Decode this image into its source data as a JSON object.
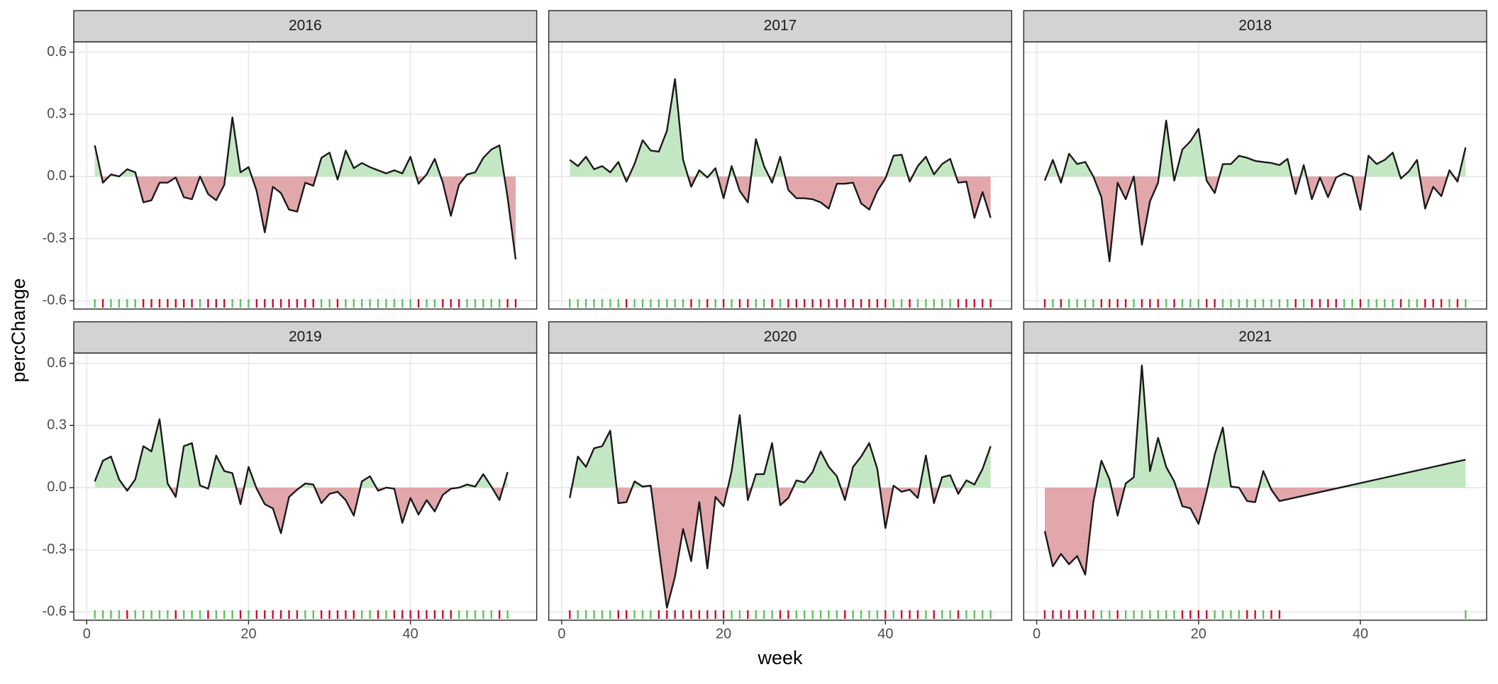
{
  "chart_data": {
    "type": "area",
    "x_label": "week",
    "y_label": "percChange",
    "xlim": [
      -1.6,
      55.6
    ],
    "xticks": [
      0,
      20,
      40
    ],
    "ylim": [
      -0.64,
      0.65
    ],
    "yticks": [
      -0.6,
      -0.3,
      {
        "value": 0,
        "label": "0.0"
      },
      0.3,
      0.6
    ],
    "grid": true,
    "fill_colors": {
      "positive": "#c4e7c3",
      "negative": "#e1a7ab"
    },
    "rug_colors": {
      "positive": "#5fc35f",
      "negative": "#c8102e"
    },
    "line_color": "#1a1a1a",
    "facets": [
      {
        "title": "2016",
        "x": [
          1,
          2,
          3,
          4,
          5,
          6,
          7,
          8,
          9,
          10,
          11,
          12,
          13,
          14,
          15,
          16,
          17,
          18,
          19,
          20,
          21,
          22,
          23,
          24,
          25,
          26,
          27,
          28,
          29,
          30,
          31,
          32,
          33,
          34,
          35,
          36,
          37,
          38,
          39,
          40,
          41,
          42,
          43,
          44,
          45,
          46,
          47,
          48,
          49,
          50,
          51,
          52,
          53
        ],
        "values": [
          0.15,
          -0.03,
          0.01,
          0.0,
          0.035,
          0.02,
          -0.125,
          -0.115,
          -0.03,
          -0.03,
          -0.005,
          -0.1,
          -0.11,
          0.0,
          -0.085,
          -0.115,
          -0.04,
          0.285,
          0.02,
          0.045,
          -0.07,
          -0.27,
          -0.05,
          -0.08,
          -0.16,
          -0.17,
          -0.03,
          -0.045,
          0.09,
          0.115,
          -0.015,
          0.125,
          0.04,
          0.065,
          0.045,
          0.03,
          0.015,
          0.03,
          0.015,
          0.095,
          -0.035,
          0.01,
          0.085,
          -0.03,
          -0.19,
          -0.04,
          0.01,
          0.02,
          0.09,
          0.13,
          0.15,
          -0.1,
          -0.4
        ]
      },
      {
        "title": "2017",
        "x": [
          1,
          2,
          3,
          4,
          5,
          6,
          7,
          8,
          9,
          10,
          11,
          12,
          13,
          14,
          15,
          16,
          17,
          18,
          19,
          20,
          21,
          22,
          23,
          24,
          25,
          26,
          27,
          28,
          29,
          30,
          31,
          32,
          33,
          34,
          35,
          36,
          37,
          38,
          39,
          40,
          41,
          42,
          43,
          44,
          45,
          46,
          47,
          48,
          49,
          50,
          51,
          52,
          53
        ],
        "values": [
          0.08,
          0.05,
          0.095,
          0.035,
          0.05,
          0.02,
          0.07,
          -0.025,
          0.06,
          0.175,
          0.125,
          0.12,
          0.22,
          0.47,
          0.08,
          -0.05,
          0.03,
          -0.005,
          0.04,
          -0.105,
          0.05,
          -0.07,
          -0.125,
          0.18,
          0.05,
          -0.03,
          0.095,
          -0.065,
          -0.105,
          -0.105,
          -0.11,
          -0.125,
          -0.155,
          -0.035,
          -0.035,
          -0.03,
          -0.13,
          -0.16,
          -0.07,
          -0.01,
          0.1,
          0.105,
          -0.025,
          0.05,
          0.095,
          0.01,
          0.06,
          0.085,
          -0.03,
          -0.025,
          -0.2,
          -0.075,
          -0.2
        ]
      },
      {
        "title": "2018",
        "x": [
          1,
          2,
          3,
          4,
          5,
          6,
          7,
          8,
          9,
          10,
          11,
          12,
          13,
          14,
          15,
          16,
          17,
          18,
          19,
          20,
          21,
          22,
          23,
          24,
          25,
          26,
          27,
          28,
          29,
          30,
          31,
          32,
          33,
          34,
          35,
          36,
          37,
          38,
          39,
          40,
          41,
          42,
          43,
          44,
          45,
          46,
          47,
          48,
          49,
          50,
          51,
          52,
          53
        ],
        "values": [
          -0.02,
          0.08,
          -0.03,
          0.11,
          0.06,
          0.07,
          0.0,
          -0.1,
          -0.41,
          -0.03,
          -0.11,
          0.0,
          -0.33,
          -0.12,
          -0.03,
          0.27,
          -0.02,
          0.13,
          0.17,
          0.23,
          -0.02,
          -0.08,
          0.06,
          0.06,
          0.1,
          0.09,
          0.075,
          0.07,
          0.065,
          0.055,
          0.085,
          -0.085,
          0.055,
          -0.11,
          -0.005,
          -0.1,
          -0.005,
          0.015,
          0.0,
          -0.16,
          0.1,
          0.06,
          0.08,
          0.115,
          -0.01,
          0.025,
          0.08,
          -0.155,
          -0.05,
          -0.095,
          0.03,
          -0.025,
          0.14
        ]
      },
      {
        "title": "2019",
        "x": [
          1,
          2,
          3,
          4,
          5,
          6,
          7,
          8,
          9,
          10,
          11,
          12,
          13,
          14,
          15,
          16,
          17,
          18,
          19,
          20,
          21,
          22,
          23,
          24,
          25,
          26,
          27,
          28,
          29,
          30,
          31,
          32,
          33,
          34,
          35,
          36,
          37,
          38,
          39,
          40,
          41,
          42,
          43,
          44,
          45,
          46,
          47,
          48,
          49,
          50,
          51,
          52
        ],
        "values": [
          0.03,
          0.13,
          0.15,
          0.04,
          -0.015,
          0.04,
          0.2,
          0.175,
          0.33,
          0.02,
          -0.045,
          0.2,
          0.215,
          0.01,
          -0.005,
          0.155,
          0.08,
          0.07,
          -0.08,
          0.1,
          -0.005,
          -0.08,
          -0.1,
          -0.22,
          -0.045,
          -0.01,
          0.02,
          0.015,
          -0.075,
          -0.03,
          -0.02,
          -0.06,
          -0.135,
          0.03,
          0.055,
          -0.015,
          0.0,
          -0.005,
          -0.17,
          -0.05,
          -0.13,
          -0.06,
          -0.115,
          -0.035,
          -0.005,
          0.0,
          0.015,
          0.005,
          0.065,
          0.005,
          -0.06,
          0.075
        ]
      },
      {
        "title": "2020",
        "x": [
          1,
          2,
          3,
          4,
          5,
          6,
          7,
          8,
          9,
          10,
          11,
          12,
          13,
          14,
          15,
          16,
          17,
          18,
          19,
          20,
          21,
          22,
          23,
          24,
          25,
          26,
          27,
          28,
          29,
          30,
          31,
          32,
          33,
          34,
          35,
          36,
          37,
          38,
          39,
          40,
          41,
          42,
          43,
          44,
          45,
          46,
          47,
          48,
          49,
          50,
          51,
          52,
          53
        ],
        "values": [
          -0.05,
          0.15,
          0.1,
          0.19,
          0.2,
          0.275,
          -0.075,
          -0.07,
          0.03,
          0.005,
          0.01,
          -0.29,
          -0.58,
          -0.43,
          -0.2,
          -0.355,
          -0.07,
          -0.39,
          -0.045,
          -0.09,
          0.08,
          0.35,
          -0.06,
          0.065,
          0.065,
          0.215,
          -0.085,
          -0.05,
          0.035,
          0.025,
          0.075,
          0.175,
          0.1,
          0.055,
          -0.06,
          0.1,
          0.15,
          0.215,
          0.09,
          -0.195,
          0.01,
          -0.02,
          -0.01,
          -0.05,
          0.155,
          -0.075,
          0.05,
          0.06,
          -0.03,
          0.035,
          0.015,
          0.09,
          0.2
        ]
      },
      {
        "title": "2021",
        "x": [
          1,
          2,
          3,
          4,
          5,
          6,
          7,
          8,
          9,
          10,
          11,
          12,
          13,
          14,
          15,
          16,
          17,
          18,
          19,
          20,
          21,
          22,
          23,
          24,
          25,
          26,
          27,
          28,
          29,
          30,
          53
        ],
        "values": [
          -0.21,
          -0.38,
          -0.32,
          -0.37,
          -0.33,
          -0.42,
          -0.07,
          0.13,
          0.04,
          -0.135,
          0.02,
          0.05,
          0.59,
          0.08,
          0.24,
          0.1,
          0.03,
          -0.09,
          -0.1,
          -0.175,
          -0.02,
          0.16,
          0.29,
          0.005,
          0.0,
          -0.065,
          -0.07,
          0.08,
          -0.01,
          -0.065,
          0.135
        ]
      }
    ]
  }
}
